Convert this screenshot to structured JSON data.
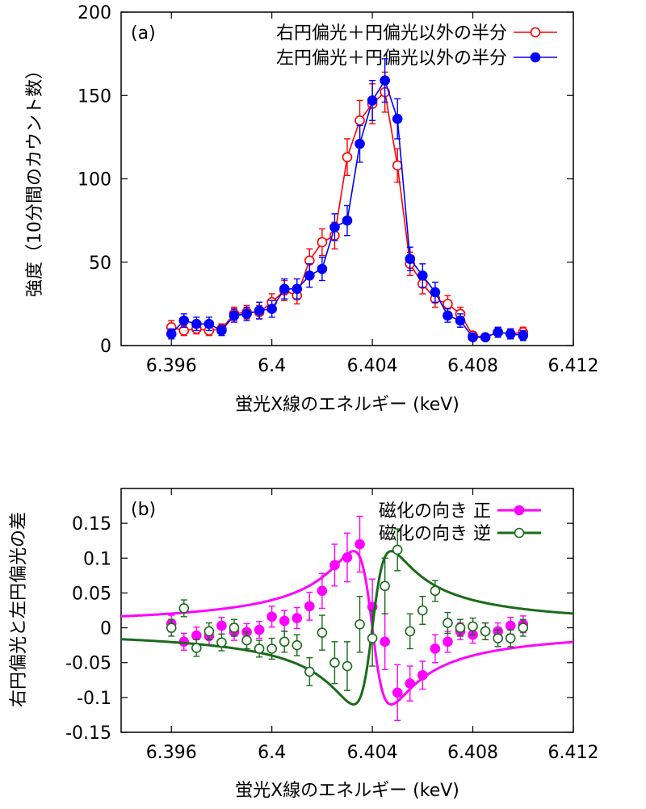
{
  "chart_data": [
    {
      "type": "line",
      "panel_label": "(a)",
      "xlabel": "蛍光X線のエネルギー (keV)",
      "ylabel": "強度（10分間のカウント数）",
      "xlim": [
        6.394,
        6.412
      ],
      "ylim": [
        0,
        200
      ],
      "xticks": [
        "6.396",
        "6.4",
        "6.404",
        "6.408",
        "6.412"
      ],
      "xtick_values": [
        6.396,
        6.4,
        6.404,
        6.408,
        6.412
      ],
      "yticks": [
        "0",
        "50",
        "100",
        "150",
        "200"
      ],
      "ytick_values": [
        0,
        50,
        100,
        150,
        200
      ],
      "legend_position": "top-right",
      "series": [
        {
          "name": "右円偏光＋円偏光以外の半分",
          "color": "#ff0000",
          "marker": "open-circle",
          "x": [
            6.396,
            6.3965,
            6.397,
            6.3975,
            6.398,
            6.3985,
            6.399,
            6.3995,
            6.4,
            6.4005,
            6.401,
            6.4015,
            6.402,
            6.4025,
            6.403,
            6.4035,
            6.404,
            6.4045,
            6.405,
            6.4055,
            6.406,
            6.4065,
            6.407,
            6.4075,
            6.408,
            6.4085,
            6.409,
            6.4095,
            6.41
          ],
          "y": [
            11,
            9,
            10,
            9,
            10,
            19,
            20,
            20,
            26,
            33,
            30,
            51,
            62,
            66,
            113,
            135,
            145,
            152,
            108,
            49,
            37,
            28,
            25,
            19,
            6,
            5,
            8,
            7,
            8
          ],
          "err": [
            4,
            3,
            3,
            3,
            3,
            4,
            4,
            4,
            5,
            6,
            5,
            7,
            8,
            8,
            11,
            12,
            12,
            12,
            10,
            7,
            6,
            5,
            5,
            4,
            2,
            2,
            3,
            3,
            3
          ]
        },
        {
          "name": "左円偏光＋円偏光以外の半分",
          "color": "#0000ff",
          "marker": "filled-circle",
          "x": [
            6.396,
            6.3965,
            6.397,
            6.3975,
            6.398,
            6.3985,
            6.399,
            6.3995,
            6.4,
            6.4005,
            6.401,
            6.4015,
            6.402,
            6.4025,
            6.403,
            6.4035,
            6.404,
            6.4045,
            6.405,
            6.4055,
            6.406,
            6.4065,
            6.407,
            6.4075,
            6.408,
            6.4085,
            6.409,
            6.4095,
            6.41
          ],
          "y": [
            7,
            15,
            13,
            13,
            9,
            18,
            19,
            21,
            22,
            34,
            34,
            42,
            46,
            71,
            75,
            121,
            147,
            159,
            136,
            52,
            42,
            32,
            18,
            15,
            5,
            5,
            8,
            7,
            6
          ],
          "err": [
            3,
            4,
            4,
            4,
            3,
            4,
            4,
            5,
            5,
            6,
            6,
            7,
            7,
            8,
            9,
            11,
            12,
            13,
            12,
            7,
            7,
            6,
            4,
            4,
            2,
            2,
            3,
            3,
            3
          ]
        }
      ]
    },
    {
      "type": "scatter",
      "panel_label": "(b)",
      "xlabel": "蛍光X線のエネルギー (keV)",
      "ylabel": "右円偏光と左円偏光の差",
      "xlim": [
        6.394,
        6.412
      ],
      "ylim": [
        -0.15,
        0.2
      ],
      "xticks": [
        "6.396",
        "6.4",
        "6.404",
        "6.408",
        "6.412"
      ],
      "xtick_values": [
        6.396,
        6.4,
        6.404,
        6.408,
        6.412
      ],
      "yticks": [
        "-0.15",
        "-0.1",
        "-0.05",
        "0",
        "0.05",
        "0.1",
        "0.15"
      ],
      "ytick_values": [
        -0.15,
        -0.1,
        -0.05,
        0,
        0.05,
        0.1,
        0.15
      ],
      "legend_position": "top-right",
      "series": [
        {
          "name": "磁化の向き 正",
          "color": "#ff00ff",
          "marker": "filled-circle",
          "x": [
            6.396,
            6.3965,
            6.397,
            6.3975,
            6.398,
            6.3985,
            6.399,
            6.3995,
            6.4,
            6.4005,
            6.401,
            6.4015,
            6.402,
            6.4025,
            6.403,
            6.4035,
            6.404,
            6.4045,
            6.405,
            6.4055,
            6.406,
            6.4065,
            6.407,
            6.4075,
            6.408,
            6.4085,
            6.409,
            6.4095,
            6.41
          ],
          "y": [
            0.006,
            -0.02,
            -0.011,
            -0.012,
            0.003,
            -0.006,
            -0.006,
            -0.003,
            0.016,
            0.01,
            0.014,
            0.031,
            0.053,
            0.09,
            0.101,
            0.12,
            0.03,
            -0.02,
            -0.093,
            -0.08,
            -0.068,
            -0.03,
            -0.02,
            -0.005,
            -0.01,
            -0.005,
            -0.005,
            0.003,
            0.005
          ],
          "err": [
            0.012,
            0.012,
            0.012,
            0.012,
            0.012,
            0.012,
            0.012,
            0.012,
            0.015,
            0.015,
            0.015,
            0.02,
            0.025,
            0.03,
            0.035,
            0.04,
            0.04,
            0.04,
            0.04,
            0.025,
            0.02,
            0.02,
            0.015,
            0.012,
            0.012,
            0.012,
            0.012,
            0.012,
            0.012
          ],
          "fit_amplitude": 0.11,
          "fit_center": 6.404,
          "fit_halfwidth": 0.00075
        },
        {
          "name": "磁化の向き 逆",
          "color": "#1a6b1a",
          "marker": "open-circle",
          "x": [
            6.396,
            6.3965,
            6.397,
            6.3975,
            6.398,
            6.3985,
            6.399,
            6.3995,
            6.4,
            6.4005,
            6.401,
            6.4015,
            6.402,
            6.4025,
            6.403,
            6.4035,
            6.404,
            6.4045,
            6.405,
            6.4055,
            6.406,
            6.4065,
            6.407,
            6.4075,
            6.408,
            6.4085,
            6.409,
            6.4095,
            6.41
          ],
          "y": [
            0.0,
            0.028,
            -0.029,
            -0.005,
            -0.021,
            0.0,
            -0.018,
            -0.03,
            -0.03,
            -0.02,
            -0.025,
            -0.063,
            -0.007,
            -0.05,
            -0.055,
            0.005,
            -0.015,
            0.06,
            0.112,
            -0.005,
            0.025,
            0.053,
            0.007,
            0.0,
            0.002,
            -0.005,
            -0.015,
            -0.015,
            0.0
          ],
          "err": [
            0.012,
            0.012,
            0.012,
            0.012,
            0.012,
            0.012,
            0.012,
            0.012,
            0.015,
            0.015,
            0.015,
            0.02,
            0.025,
            0.03,
            0.035,
            0.04,
            0.04,
            0.04,
            0.03,
            0.025,
            0.02,
            0.015,
            0.015,
            0.012,
            0.012,
            0.012,
            0.012,
            0.012,
            0.012
          ],
          "fit_amplitude": -0.11,
          "fit_center": 6.404,
          "fit_halfwidth": 0.00075
        }
      ]
    }
  ]
}
